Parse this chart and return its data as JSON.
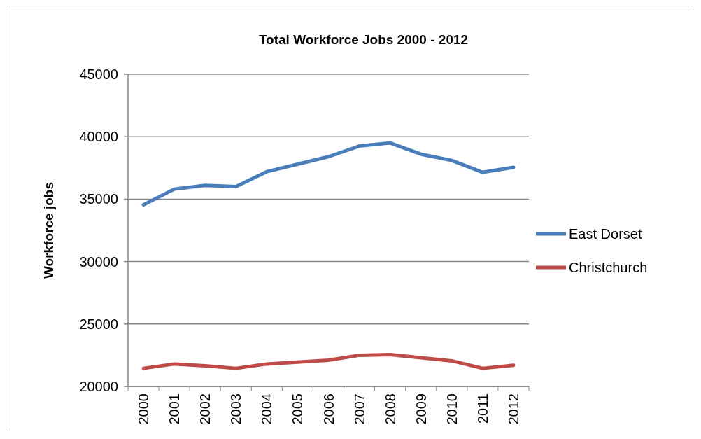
{
  "chart_data": {
    "type": "line",
    "title": "Total Workforce Jobs 2000 - 2012",
    "ylabel": "Workforce jobs",
    "categories": [
      "2000",
      "2001",
      "2002",
      "2003",
      "2004",
      "2005",
      "2006",
      "2007",
      "2008",
      "2009",
      "2010",
      "2011",
      "2012"
    ],
    "series": [
      {
        "name": "East Dorset",
        "color": "#4a7ebb",
        "values": [
          34550,
          35800,
          36100,
          36000,
          37200,
          37800,
          38400,
          39250,
          39500,
          38600,
          38100,
          37150,
          37550
        ]
      },
      {
        "name": "Christchurch",
        "color": "#be4b48",
        "values": [
          21450,
          21800,
          21650,
          21450,
          21800,
          21950,
          22100,
          22500,
          22550,
          22300,
          22050,
          21450,
          21700
        ]
      }
    ],
    "ylim": [
      20000,
      45000
    ],
    "yticks": [
      20000,
      25000,
      30000,
      35000,
      40000,
      45000
    ],
    "grid": "y",
    "legend": "right",
    "marker": "none",
    "line_style": "solid"
  }
}
